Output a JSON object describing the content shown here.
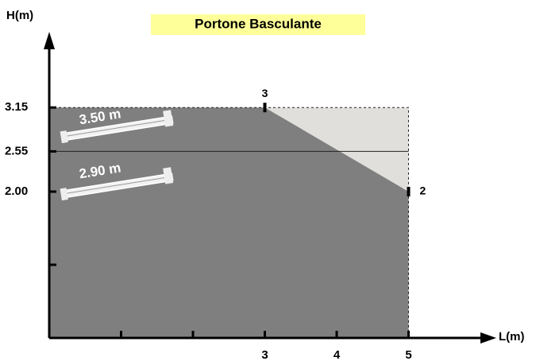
{
  "chart_data": {
    "type": "area",
    "title": "Portone Basculante",
    "title_background": "#ffff99",
    "x_label": "L(m)",
    "y_label": "H(m)",
    "xlim": [
      0,
      6
    ],
    "ylim": [
      0,
      4
    ],
    "xticks": [
      {
        "value": 1,
        "label": null
      },
      {
        "value": 2,
        "label": null
      },
      3,
      4,
      5
    ],
    "yticks": [
      {
        "value": 1,
        "label": null
      },
      {
        "value": 2,
        "label": "2.00"
      },
      2.55,
      3.15
    ],
    "reference_line": 2.55,
    "series": [
      {
        "x": [
          0,
          3,
          5
        ],
        "values": [
          3.15,
          3.15,
          2
        ],
        "point_labels": [
          null,
          "3",
          "2"
        ],
        "color": "#7f7f7f",
        "outside_color": "#e0dfdc"
      }
    ],
    "annotations": [
      "3.50 m",
      "2.90 m"
    ]
  }
}
